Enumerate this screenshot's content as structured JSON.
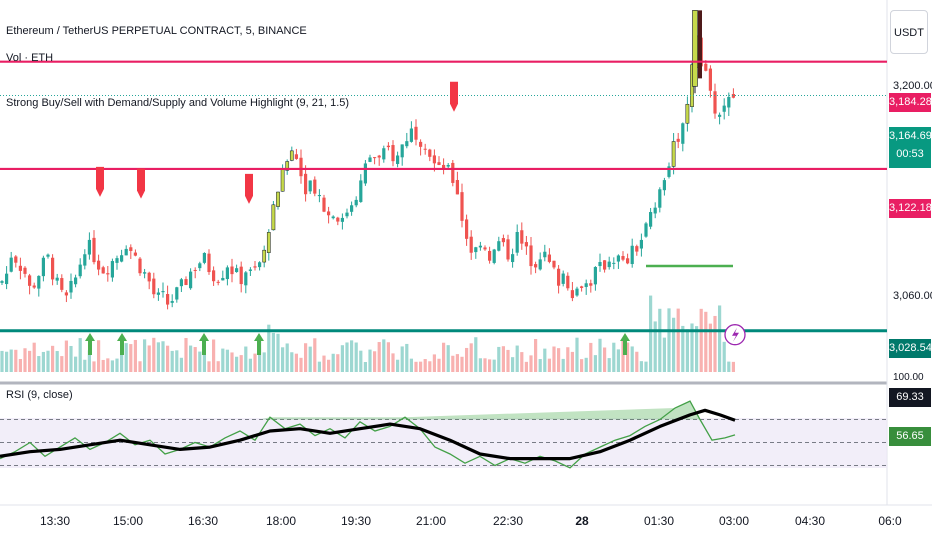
{
  "legend": {
    "symbol": "Ethereum / TetherUS PERPETUAL CONTRACT, 5, BINANCE",
    "volume": "Vol · ETH",
    "indicator": "Strong Buy/Sell with Demand/Supply and Volume Highlight (9, 21, 1.5)",
    "rsi": "RSI (9, close)"
  },
  "currency": "USDT",
  "price_axis": {
    "labels": [
      "3,200.00",
      "3,060.00",
      "100.00"
    ]
  },
  "price_tags": {
    "resistance": "3,184.28",
    "last_price": "3,164.69",
    "countdown": "00:53",
    "support": "3,122.18",
    "demand": "3,028.54",
    "rsi_ma": "69.33",
    "rsi_value": "56.65"
  },
  "time_axis": [
    "13:30",
    "15:00",
    "16:30",
    "18:00",
    "19:30",
    "21:00",
    "22:30",
    "28",
    "01:30",
    "03:00",
    "04:30",
    "06:0"
  ],
  "colors": {
    "up": "#26a69a",
    "down": "#ef5350",
    "level_pink": "#e91e63",
    "level_teal": "#00897b",
    "rsi_line": "#43a047",
    "rsi_ma": "#000000",
    "signal_sell": "#f23645",
    "signal_buy": "#4caf50",
    "highlight_up": "#c6d94b"
  },
  "chart_data": {
    "type": "candlestick",
    "timeframe": "5",
    "y_axis": {
      "min": 3000,
      "max": 3220
    },
    "levels": [
      3184.28,
      3122.18,
      3028.54
    ],
    "demand_level": 3066,
    "last_price": 3164.69,
    "close_path": [
      [
        0,
        3056
      ],
      [
        6,
        3060
      ],
      [
        12,
        3075
      ],
      [
        18,
        3068
      ],
      [
        24,
        3064
      ],
      [
        30,
        3052
      ],
      [
        36,
        3058
      ],
      [
        42,
        3066
      ],
      [
        48,
        3070
      ],
      [
        54,
        3060
      ],
      [
        60,
        3050
      ],
      [
        66,
        3046
      ],
      [
        72,
        3054
      ],
      [
        78,
        3062
      ],
      [
        84,
        3078
      ],
      [
        90,
        3076
      ],
      [
        96,
        3070
      ],
      [
        102,
        3064
      ],
      [
        108,
        3066
      ],
      [
        114,
        3070
      ],
      [
        120,
        3074
      ],
      [
        126,
        3080
      ],
      [
        132,
        3074
      ],
      [
        138,
        3068
      ],
      [
        144,
        3062
      ],
      [
        150,
        3056
      ],
      [
        156,
        3046
      ],
      [
        162,
        3048
      ],
      [
        168,
        3044
      ],
      [
        174,
        3048
      ],
      [
        180,
        3052
      ],
      [
        186,
        3058
      ],
      [
        192,
        3064
      ],
      [
        198,
        3068
      ],
      [
        204,
        3070
      ],
      [
        210,
        3064
      ],
      [
        216,
        3060
      ],
      [
        222,
        3062
      ],
      [
        228,
        3068
      ],
      [
        234,
        3062
      ],
      [
        240,
        3058
      ],
      [
        246,
        3064
      ],
      [
        252,
        3060
      ],
      [
        258,
        3066
      ],
      [
        264,
        3072
      ],
      [
        270,
        3094
      ],
      [
        276,
        3108
      ],
      [
        282,
        3118
      ],
      [
        288,
        3128
      ],
      [
        294,
        3134
      ],
      [
        300,
        3120
      ],
      [
        306,
        3112
      ],
      [
        312,
        3116
      ],
      [
        318,
        3108
      ],
      [
        324,
        3100
      ],
      [
        330,
        3094
      ],
      [
        336,
        3098
      ],
      [
        342,
        3090
      ],
      [
        348,
        3100
      ],
      [
        354,
        3106
      ],
      [
        360,
        3112
      ],
      [
        366,
        3124
      ],
      [
        372,
        3132
      ],
      [
        378,
        3126
      ],
      [
        384,
        3130
      ],
      [
        390,
        3134
      ],
      [
        396,
        3126
      ],
      [
        402,
        3136
      ],
      [
        408,
        3142
      ],
      [
        414,
        3146
      ],
      [
        420,
        3140
      ],
      [
        426,
        3138
      ],
      [
        432,
        3128
      ],
      [
        438,
        3120
      ],
      [
        444,
        3124
      ],
      [
        450,
        3118
      ],
      [
        456,
        3114
      ],
      [
        462,
        3094
      ],
      [
        468,
        3080
      ],
      [
        474,
        3072
      ],
      [
        480,
        3082
      ],
      [
        486,
        3076
      ],
      [
        492,
        3070
      ],
      [
        498,
        3080
      ],
      [
        504,
        3076
      ],
      [
        510,
        3072
      ],
      [
        516,
        3084
      ],
      [
        522,
        3078
      ],
      [
        528,
        3072
      ],
      [
        534,
        3068
      ],
      [
        540,
        3074
      ],
      [
        546,
        3070
      ],
      [
        552,
        3064
      ],
      [
        558,
        3058
      ],
      [
        564,
        3062
      ],
      [
        570,
        3054
      ],
      [
        576,
        3050
      ],
      [
        582,
        3058
      ],
      [
        588,
        3054
      ],
      [
        594,
        3062
      ],
      [
        600,
        3064
      ],
      [
        606,
        3068
      ],
      [
        612,
        3072
      ],
      [
        618,
        3070
      ],
      [
        624,
        3066
      ],
      [
        630,
        3072
      ],
      [
        636,
        3076
      ],
      [
        642,
        3082
      ],
      [
        648,
        3090
      ],
      [
        654,
        3100
      ],
      [
        660,
        3108
      ],
      [
        666,
        3122
      ],
      [
        672,
        3130
      ],
      [
        678,
        3142
      ],
      [
        684,
        3150
      ],
      [
        690,
        3170
      ],
      [
        694,
        3200
      ],
      [
        700,
        3188
      ],
      [
        706,
        3174
      ],
      [
        712,
        3160
      ],
      [
        718,
        3154
      ],
      [
        724,
        3158
      ],
      [
        730,
        3162
      ],
      [
        735,
        3164.69
      ]
    ],
    "spike_candle": {
      "x": 695,
      "open": 3170,
      "close": 3214,
      "high": 3214,
      "low": 3166
    },
    "sell_signals_x": [
      100,
      141,
      249,
      454
    ],
    "buy_signals_x": [
      90,
      122,
      204,
      259,
      625
    ],
    "rsi": {
      "period": 9,
      "source": "close",
      "ylim": [
        0,
        100
      ],
      "bands": [
        70,
        50,
        30
      ],
      "rsi_path": [
        [
          0,
          36
        ],
        [
          15,
          42
        ],
        [
          30,
          50
        ],
        [
          45,
          38
        ],
        [
          60,
          46
        ],
        [
          75,
          54
        ],
        [
          90,
          44
        ],
        [
          105,
          50
        ],
        [
          120,
          58
        ],
        [
          135,
          48
        ],
        [
          150,
          52
        ],
        [
          165,
          40
        ],
        [
          180,
          44
        ],
        [
          195,
          50
        ],
        [
          210,
          46
        ],
        [
          225,
          54
        ],
        [
          240,
          60
        ],
        [
          255,
          52
        ],
        [
          270,
          72
        ],
        [
          285,
          62
        ],
        [
          300,
          66
        ],
        [
          315,
          56
        ],
        [
          330,
          62
        ],
        [
          345,
          54
        ],
        [
          360,
          68
        ],
        [
          375,
          60
        ],
        [
          390,
          64
        ],
        [
          405,
          72
        ],
        [
          420,
          62
        ],
        [
          435,
          46
        ],
        [
          450,
          40
        ],
        [
          465,
          32
        ],
        [
          480,
          38
        ],
        [
          495,
          30
        ],
        [
          510,
          36
        ],
        [
          525,
          32
        ],
        [
          540,
          38
        ],
        [
          555,
          34
        ],
        [
          570,
          28
        ],
        [
          585,
          40
        ],
        [
          600,
          46
        ],
        [
          615,
          52
        ],
        [
          630,
          56
        ],
        [
          645,
          64
        ],
        [
          660,
          70
        ],
        [
          675,
          80
        ],
        [
          690,
          86
        ],
        [
          700,
          70
        ],
        [
          712,
          52
        ],
        [
          725,
          54
        ],
        [
          735,
          56.65
        ]
      ],
      "ma_path": [
        [
          0,
          38
        ],
        [
          30,
          42
        ],
        [
          60,
          44
        ],
        [
          90,
          48
        ],
        [
          120,
          52
        ],
        [
          150,
          48
        ],
        [
          180,
          44
        ],
        [
          210,
          46
        ],
        [
          240,
          52
        ],
        [
          270,
          60
        ],
        [
          300,
          62
        ],
        [
          330,
          58
        ],
        [
          360,
          62
        ],
        [
          390,
          66
        ],
        [
          420,
          62
        ],
        [
          450,
          52
        ],
        [
          480,
          40
        ],
        [
          510,
          36
        ],
        [
          540,
          36
        ],
        [
          570,
          36
        ],
        [
          600,
          42
        ],
        [
          630,
          52
        ],
        [
          660,
          64
        ],
        [
          690,
          74
        ],
        [
          705,
          78
        ],
        [
          720,
          74
        ],
        [
          735,
          69.33
        ]
      ]
    }
  }
}
